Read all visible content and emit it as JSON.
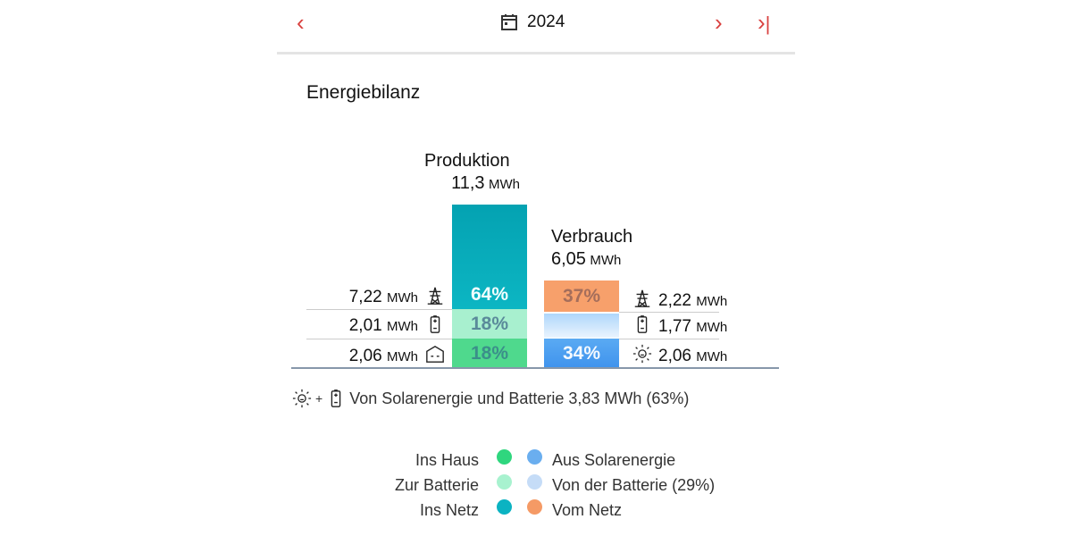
{
  "header": {
    "year": "2024",
    "prev_icon": "chevron-left-icon",
    "next_icon": "chevron-right-icon",
    "last_icon": "skip-to-end-icon",
    "calendar_icon": "calendar-icon"
  },
  "card": {
    "title": "Energiebilanz"
  },
  "production": {
    "title": "Produktion",
    "value": "11,3",
    "unit": "MWh",
    "segments": [
      {
        "label": "64%",
        "percent": 64,
        "color": "#04a5b3"
      },
      {
        "label": "18%",
        "percent": 18,
        "color": "#a8f0cf"
      },
      {
        "label": "18%",
        "percent": 18,
        "color": "#4fd98d"
      }
    ],
    "rows": [
      {
        "value": "7,22",
        "unit": "MWh",
        "icon": "power-tower-icon"
      },
      {
        "value": "2,01",
        "unit": "MWh",
        "icon": "battery-icon"
      },
      {
        "value": "2,06",
        "unit": "MWh",
        "icon": "house-icon"
      }
    ]
  },
  "consumption": {
    "title": "Verbrauch",
    "value": "6,05",
    "unit": "MWh",
    "segments": [
      {
        "label": "37%",
        "percent": 37,
        "color": "#f7a06b"
      },
      {
        "label": "",
        "percent": 29,
        "color": "#c7e3fb"
      },
      {
        "label": "34%",
        "percent": 34,
        "color": "#4b9ff0"
      }
    ],
    "rows": [
      {
        "value": "2,22",
        "unit": "MWh",
        "icon": "power-tower-icon"
      },
      {
        "value": "1,77",
        "unit": "MWh",
        "icon": "battery-icon"
      },
      {
        "value": "2,06",
        "unit": "MWh",
        "icon": "sun-icon"
      }
    ]
  },
  "summary": {
    "plus": "+",
    "text": "Von Solarenergie und Batterie 3,83 MWh (63%)"
  },
  "legend": {
    "left": [
      {
        "label": "Ins Haus",
        "color": "#2fd67e"
      },
      {
        "label": "Zur Batterie",
        "color": "#a8f2cf"
      },
      {
        "label": "Ins Netz",
        "color": "#0bb3c2"
      }
    ],
    "right": [
      {
        "label": "Aus Solarenergie",
        "color": "#6aaeef"
      },
      {
        "label": "Von der Batterie (29%)",
        "color": "#c5dcf7"
      },
      {
        "label": "Vom Netz",
        "color": "#f59a65"
      }
    ]
  }
}
